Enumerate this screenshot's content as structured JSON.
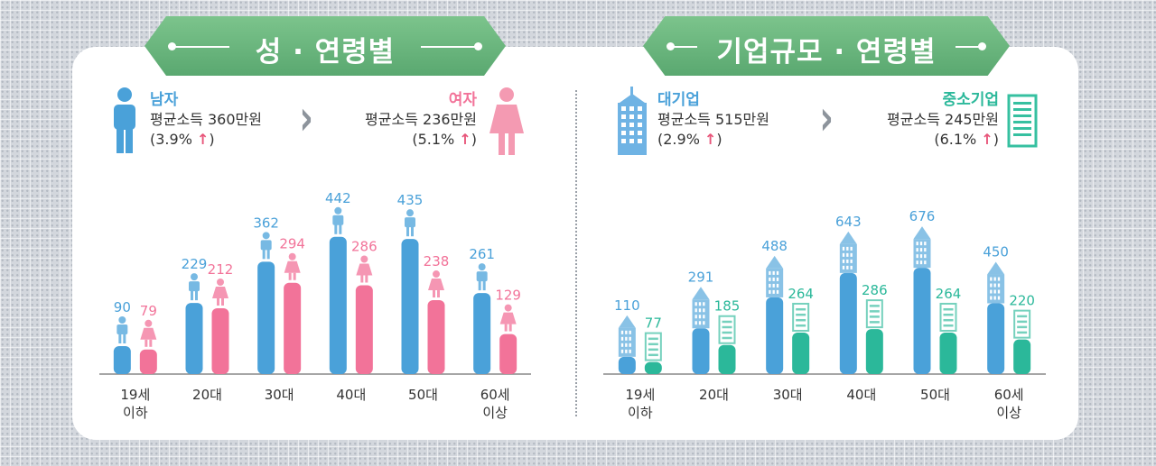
{
  "banners": {
    "left": "성 · 연령별",
    "right": "기업규모 · 연령별"
  },
  "summary": {
    "male": {
      "title": "남자",
      "income": "평균소득 360만원",
      "change": "(3.9%",
      "close": ")"
    },
    "female": {
      "title": "여자",
      "income": "평균소득 236만원",
      "change": "(5.1%",
      "close": ")"
    },
    "large": {
      "title": "대기업",
      "income": "평균소득 515만원",
      "change": "(2.9%",
      "close": ")"
    },
    "sme": {
      "title": "중소기업",
      "income": "평균소득 245만원",
      "change": "(6.1%",
      "close": ")"
    }
  },
  "arrows": {
    "up": "↑",
    "chevron": "›"
  },
  "colors": {
    "male": "#4aa1d9",
    "female": "#f27399",
    "large": "#4aa1d9",
    "sme": "#2bb89a",
    "banner": "#6bb87e",
    "axis": "#888888"
  },
  "icons": {
    "male": "male-figure-icon",
    "female": "female-figure-icon",
    "large": "skyscraper-icon",
    "sme": "small-building-icon"
  },
  "chart_data": [
    {
      "type": "bar",
      "categories": [
        "19세\n이하",
        "20대",
        "30대",
        "40대",
        "50대",
        "60세\n이상"
      ],
      "series": [
        {
          "name": "남자",
          "values": [
            90,
            229,
            362,
            442,
            435,
            261
          ]
        },
        {
          "name": "여자",
          "values": [
            79,
            212,
            294,
            286,
            238,
            129
          ]
        }
      ],
      "ylim": [
        0,
        500
      ],
      "grid": false,
      "legend": "top"
    },
    {
      "type": "bar",
      "categories": [
        "19세\n이하",
        "20대",
        "30대",
        "40대",
        "50대",
        "60세\n이상"
      ],
      "series": [
        {
          "name": "대기업",
          "values": [
            110,
            291,
            488,
            643,
            676,
            450
          ]
        },
        {
          "name": "중소기업",
          "values": [
            77,
            185,
            264,
            286,
            264,
            220
          ]
        }
      ],
      "ylim": [
        0,
        800
      ],
      "grid": false,
      "legend": "top"
    }
  ]
}
